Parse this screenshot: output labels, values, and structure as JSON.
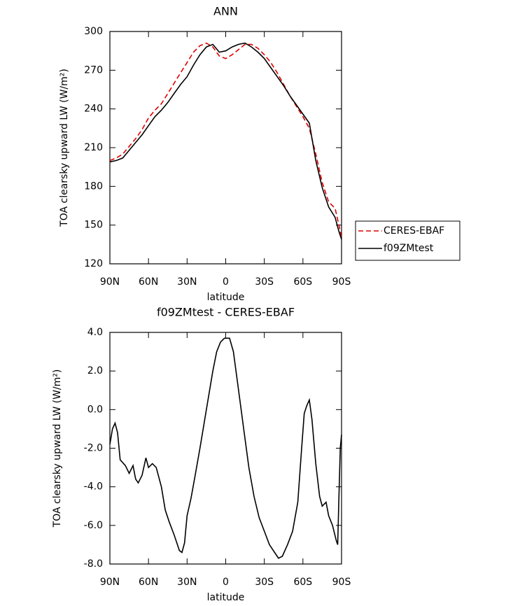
{
  "chart_data": [
    {
      "type": "line",
      "title": "ANN",
      "xlabel": "latitude",
      "ylabel": "TOA clearsky upward LW (W/m²)",
      "x": [
        90,
        85,
        80,
        75,
        70,
        65,
        60,
        55,
        50,
        45,
        40,
        35,
        30,
        25,
        20,
        15,
        10,
        5,
        0,
        -5,
        -10,
        -15,
        -20,
        -25,
        -30,
        -35,
        -40,
        -45,
        -50,
        -55,
        -60,
        -65,
        -70,
        -75,
        -80,
        -85,
        -88,
        -90
      ],
      "series": [
        {
          "name": "CERES-EBAF",
          "color": "#e00000",
          "dash": true,
          "values": [
            200,
            202,
            205,
            211,
            217,
            224,
            233,
            239,
            244,
            252,
            260,
            268,
            276,
            284,
            289,
            291,
            288,
            281,
            279,
            282,
            286,
            290,
            290,
            287,
            282,
            276,
            268,
            259,
            250,
            242,
            234,
            225,
            205,
            183,
            168,
            163,
            150,
            140
          ]
        },
        {
          "name": "f09ZMtest",
          "color": "#000000",
          "dash": false,
          "values": [
            199,
            200,
            202,
            208,
            214,
            220,
            227,
            234,
            239,
            245,
            252,
            259,
            265,
            274,
            282,
            288,
            290,
            284,
            285,
            288,
            290,
            291,
            288,
            284,
            279,
            272,
            265,
            258,
            250,
            243,
            236,
            229,
            200,
            179,
            164,
            156,
            145,
            139
          ]
        }
      ],
      "xlim": [
        90,
        -90
      ],
      "xticks": [
        {
          "value": 90,
          "label": "90N"
        },
        {
          "value": 60,
          "label": "60N"
        },
        {
          "value": 30,
          "label": "30N"
        },
        0,
        {
          "value": -30,
          "label": "30S"
        },
        {
          "value": -60,
          "label": "60S"
        },
        {
          "value": -90,
          "label": "90S"
        }
      ],
      "ylim": [
        120,
        300
      ],
      "yticks": [
        120,
        150,
        180,
        210,
        240,
        270,
        300
      ],
      "grid": false,
      "legend": "outside-right"
    },
    {
      "type": "line",
      "title": "f09ZMtest - CERES-EBAF",
      "xlabel": "latitude",
      "ylabel": "TOA clearsky upward LW (W/m²)",
      "x": [
        90,
        88,
        86,
        84,
        82,
        78,
        75,
        72,
        70,
        68,
        65,
        62,
        60,
        57,
        54,
        50,
        47,
        44,
        40,
        36,
        34,
        32,
        30,
        27,
        24,
        20,
        15,
        10,
        7,
        4,
        1,
        -3,
        -6,
        -10,
        -14,
        -18,
        -22,
        -26,
        -30,
        -34,
        -38,
        -41,
        -44,
        -48,
        -52,
        -56,
        -59,
        -61,
        -63,
        -65,
        -67,
        -70,
        -73,
        -75,
        -78,
        -80,
        -83,
        -86,
        -87,
        -88,
        -89,
        -90
      ],
      "values": [
        -1.8,
        -1.0,
        -0.7,
        -1.2,
        -2.6,
        -2.9,
        -3.3,
        -2.9,
        -3.6,
        -3.8,
        -3.4,
        -2.5,
        -3.0,
        -2.8,
        -3.0,
        -4.0,
        -5.2,
        -5.8,
        -6.5,
        -7.3,
        -7.4,
        -6.9,
        -5.5,
        -4.6,
        -3.5,
        -2.0,
        0.0,
        2.0,
        3.0,
        3.5,
        3.7,
        3.7,
        3.0,
        1.0,
        -1.0,
        -3.0,
        -4.5,
        -5.6,
        -6.3,
        -7.0,
        -7.4,
        -7.7,
        -7.6,
        -7.0,
        -6.3,
        -4.8,
        -2.0,
        -0.2,
        0.2,
        0.5,
        -0.5,
        -2.8,
        -4.5,
        -5.0,
        -4.8,
        -5.5,
        -6.0,
        -6.8,
        -7.0,
        -4.5,
        -2.0,
        -1.3
      ],
      "color": "#000000",
      "xlim": [
        90,
        -90
      ],
      "xticks": [
        {
          "value": 90,
          "label": "90N"
        },
        {
          "value": 60,
          "label": "60N"
        },
        {
          "value": 30,
          "label": "30N"
        },
        0,
        {
          "value": -30,
          "label": "30S"
        },
        {
          "value": -60,
          "label": "60S"
        },
        {
          "value": -90,
          "label": "90S"
        }
      ],
      "ylim": [
        -8,
        4
      ],
      "yticks": [
        {
          "value": -8,
          "label": "-8.0"
        },
        {
          "value": -6,
          "label": "-6.0"
        },
        {
          "value": -4,
          "label": "-4.0"
        },
        {
          "value": -2,
          "label": "-2.0"
        },
        {
          "value": 0,
          "label": "0.0"
        },
        {
          "value": 2,
          "label": "2.0"
        },
        {
          "value": 4,
          "label": "4.0"
        }
      ],
      "grid": false
    }
  ]
}
